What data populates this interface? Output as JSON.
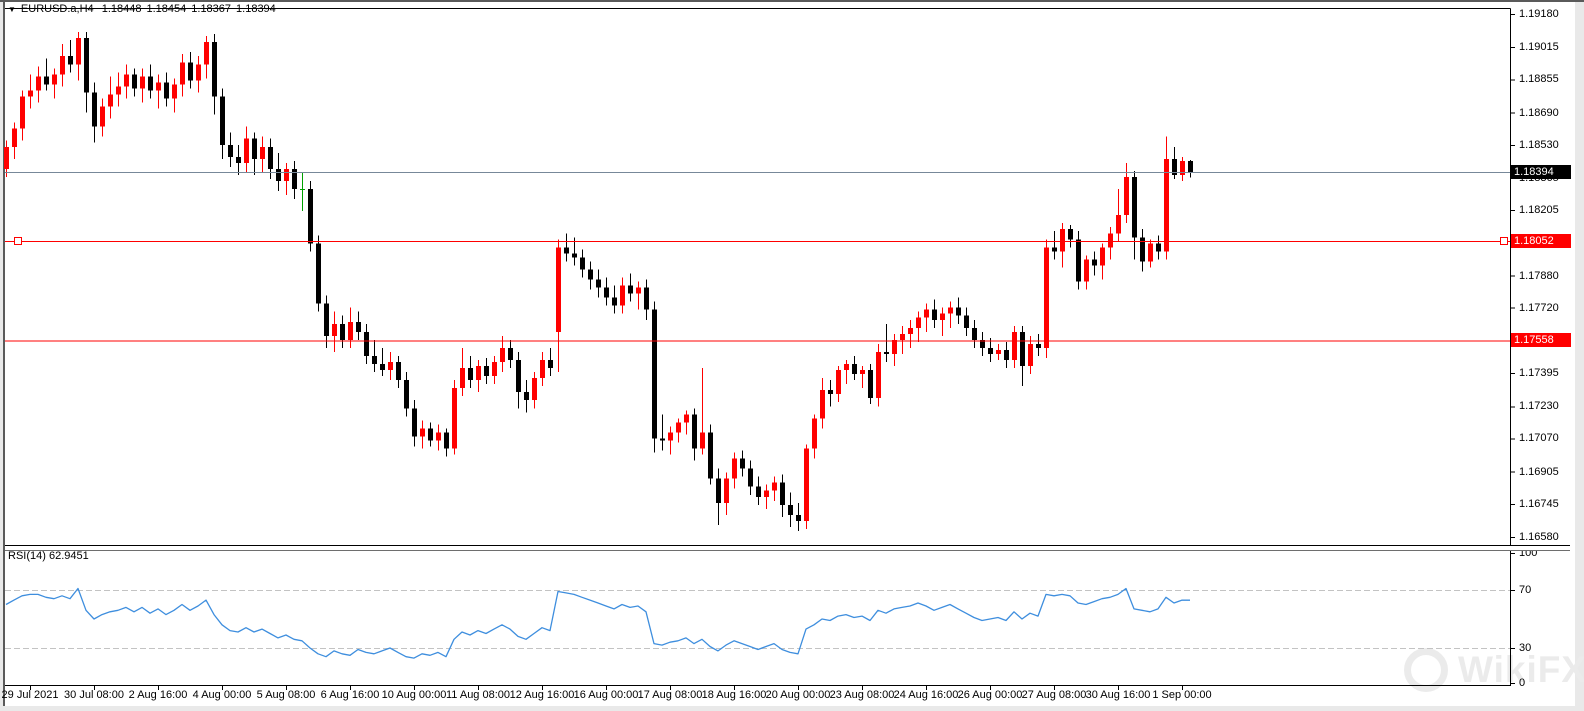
{
  "header": {
    "dropdown_icon": "▼",
    "symbol": "EURUSD.a,H4",
    "open": "1.18448",
    "high": "1.18454",
    "low": "1.18367",
    "close": "1.18394"
  },
  "colors": {
    "bull": "#ff0000",
    "bear": "#000000",
    "doji": "#00a000",
    "rsi_line": "#3e8ede",
    "rsi_level_dash": "#c3c3c3",
    "level_line": "#ff0000",
    "price_line": "#778899",
    "price_badge_bg": "#000000",
    "level_badge_bg": "#ff0000",
    "badge_text": "#ffffff",
    "axis_text": "#000000",
    "watermark": "#ebebeb"
  },
  "watermark": {
    "text": "WikiFX"
  },
  "chart_data": {
    "type": "candlestick",
    "title": "EURUSD.a H4 candlestick chart with RSI(14)",
    "symbol": "EURUSD.a",
    "timeframe": "H4",
    "grid": false,
    "y_axis_ticks": [
      "1.19180",
      "1.19015",
      "1.18855",
      "1.18690",
      "1.18530",
      "1.18365",
      "1.18205",
      "1.18040",
      "1.17880",
      "1.17720",
      "1.17560",
      "1.17395",
      "1.17230",
      "1.17070",
      "1.16905",
      "1.16745",
      "1.16580"
    ],
    "x_axis_labels": [
      "29 Jul 2021",
      "30 Jul 08:00",
      "2 Aug 16:00",
      "4 Aug 00:00",
      "5 Aug 08:00",
      "6 Aug 16:00",
      "10 Aug 00:00",
      "11 Aug 08:00",
      "12 Aug 16:00",
      "16 Aug 00:00",
      "17 Aug 08:00",
      "18 Aug 16:00",
      "20 Aug 00:00",
      "23 Aug 08:00",
      "24 Aug 16:00",
      "26 Aug 00:00",
      "27 Aug 08:00",
      "30 Aug 16:00",
      "1 Sep 00:00"
    ],
    "x_label_first_bar": 3,
    "x_label_bar_step": 8,
    "current_price": {
      "value": 1.18394,
      "label": "1.18394"
    },
    "levels": [
      {
        "value": 1.18052,
        "label": "1.18052",
        "selected": true
      },
      {
        "value": 1.17558,
        "label": "1.17558",
        "selected": false
      }
    ],
    "candles": [
      [
        1.1841,
        1.1855,
        1.1837,
        1.1852
      ],
      [
        1.1852,
        1.1864,
        1.1846,
        1.1861
      ],
      [
        1.1861,
        1.188,
        1.1855,
        1.1877
      ],
      [
        1.1877,
        1.1888,
        1.1871,
        1.188
      ],
      [
        1.188,
        1.1892,
        1.1874,
        1.1887
      ],
      [
        1.1887,
        1.1896,
        1.188,
        1.1883
      ],
      [
        1.1883,
        1.1891,
        1.1876,
        1.1888
      ],
      [
        1.1888,
        1.1903,
        1.1882,
        1.1897
      ],
      [
        1.1897,
        1.1905,
        1.1889,
        1.1893
      ],
      [
        1.1893,
        1.1909,
        1.1885,
        1.1906
      ],
      [
        1.1906,
        1.1909,
        1.1869,
        1.1879
      ],
      [
        1.1879,
        1.1884,
        1.1854,
        1.1862
      ],
      [
        1.1862,
        1.1876,
        1.1857,
        1.1872
      ],
      [
        1.1872,
        1.1887,
        1.1866,
        1.1878
      ],
      [
        1.1878,
        1.1889,
        1.1872,
        1.1882
      ],
      [
        1.1882,
        1.1893,
        1.1876,
        1.1888
      ],
      [
        1.1888,
        1.1891,
        1.1877,
        1.1881
      ],
      [
        1.1881,
        1.1891,
        1.1874,
        1.1887
      ],
      [
        1.1887,
        1.1893,
        1.1876,
        1.188
      ],
      [
        1.188,
        1.1888,
        1.1871,
        1.1884
      ],
      [
        1.1884,
        1.1889,
        1.1872,
        1.1876
      ],
      [
        1.1876,
        1.1886,
        1.1869,
        1.1883
      ],
      [
        1.1883,
        1.1898,
        1.1877,
        1.1894
      ],
      [
        1.1894,
        1.1899,
        1.1881,
        1.1885
      ],
      [
        1.1885,
        1.1897,
        1.1879,
        1.1893
      ],
      [
        1.1893,
        1.1907,
        1.1886,
        1.1904
      ],
      [
        1.1904,
        1.1908,
        1.1868,
        1.1877
      ],
      [
        1.1877,
        1.1881,
        1.1846,
        1.1853
      ],
      [
        1.1853,
        1.1859,
        1.1842,
        1.1847
      ],
      [
        1.1847,
        1.1853,
        1.1838,
        1.1844
      ],
      [
        1.1844,
        1.1862,
        1.1839,
        1.1856
      ],
      [
        1.1856,
        1.1859,
        1.1838,
        1.1846
      ],
      [
        1.1846,
        1.1857,
        1.1839,
        1.1852
      ],
      [
        1.1852,
        1.1856,
        1.1836,
        1.1841
      ],
      [
        1.1841,
        1.1849,
        1.183,
        1.1835
      ],
      [
        1.1835,
        1.1844,
        1.1828,
        1.1841
      ],
      [
        1.1841,
        1.1845,
        1.1826,
        1.1831
      ],
      [
        1.1831,
        1.1839,
        1.182,
        1.1831
      ],
      [
        1.1831,
        1.1835,
        1.18,
        1.1804
      ],
      [
        1.1804,
        1.1808,
        1.177,
        1.1774
      ],
      [
        1.1774,
        1.1778,
        1.1752,
        1.1758
      ],
      [
        1.1758,
        1.177,
        1.175,
        1.1764
      ],
      [
        1.1764,
        1.1768,
        1.1752,
        1.1756
      ],
      [
        1.1756,
        1.1772,
        1.1752,
        1.1765
      ],
      [
        1.1765,
        1.177,
        1.1756,
        1.176
      ],
      [
        1.176,
        1.1764,
        1.1744,
        1.1748
      ],
      [
        1.1748,
        1.1756,
        1.174,
        1.1744
      ],
      [
        1.1744,
        1.1752,
        1.1738,
        1.1741
      ],
      [
        1.1741,
        1.175,
        1.1736,
        1.1745
      ],
      [
        1.1745,
        1.1748,
        1.1732,
        1.1736
      ],
      [
        1.1736,
        1.174,
        1.1718,
        1.1722
      ],
      [
        1.1722,
        1.1726,
        1.1703,
        1.1708
      ],
      [
        1.1708,
        1.1716,
        1.1702,
        1.1712
      ],
      [
        1.1712,
        1.1715,
        1.1703,
        1.1706
      ],
      [
        1.1706,
        1.1714,
        1.1701,
        1.171
      ],
      [
        1.171,
        1.1712,
        1.1698,
        1.1702
      ],
      [
        1.1702,
        1.1736,
        1.1699,
        1.1732
      ],
      [
        1.1732,
        1.1752,
        1.1728,
        1.1742
      ],
      [
        1.1742,
        1.1748,
        1.1732,
        1.1736
      ],
      [
        1.1736,
        1.1746,
        1.173,
        1.1743
      ],
      [
        1.1743,
        1.1747,
        1.1734,
        1.1738
      ],
      [
        1.1738,
        1.1748,
        1.1734,
        1.1745
      ],
      [
        1.1745,
        1.1758,
        1.174,
        1.1752
      ],
      [
        1.1752,
        1.1756,
        1.1742,
        1.1746
      ],
      [
        1.1746,
        1.175,
        1.1722,
        1.173
      ],
      [
        1.173,
        1.1736,
        1.172,
        1.1726
      ],
      [
        1.1726,
        1.174,
        1.1722,
        1.1737
      ],
      [
        1.1737,
        1.175,
        1.1733,
        1.1746
      ],
      [
        1.1746,
        1.1752,
        1.1738,
        1.1742
      ],
      [
        1.176,
        1.1806,
        1.174,
        1.1802
      ],
      [
        1.1802,
        1.1809,
        1.1795,
        1.1799
      ],
      [
        1.1799,
        1.1807,
        1.1793,
        1.1797
      ],
      [
        1.1797,
        1.1801,
        1.1787,
        1.1791
      ],
      [
        1.1791,
        1.1795,
        1.1781,
        1.1786
      ],
      [
        1.1786,
        1.1791,
        1.1777,
        1.1782
      ],
      [
        1.1782,
        1.1787,
        1.1773,
        1.1777
      ],
      [
        1.1777,
        1.1783,
        1.1769,
        1.1773
      ],
      [
        1.1773,
        1.1787,
        1.1769,
        1.1783
      ],
      [
        1.1783,
        1.1789,
        1.1775,
        1.1779
      ],
      [
        1.1779,
        1.1785,
        1.1771,
        1.1782
      ],
      [
        1.1782,
        1.1786,
        1.1766,
        1.1771
      ],
      [
        1.1771,
        1.1775,
        1.17,
        1.1707
      ],
      [
        1.1707,
        1.1719,
        1.1701,
        1.1706
      ],
      [
        1.1706,
        1.1713,
        1.1699,
        1.171
      ],
      [
        1.171,
        1.1717,
        1.1705,
        1.1715
      ],
      [
        1.1715,
        1.1721,
        1.1709,
        1.1719
      ],
      [
        1.1719,
        1.1722,
        1.1696,
        1.1702
      ],
      [
        1.1702,
        1.1742,
        1.1699,
        1.171
      ],
      [
        1.171,
        1.1714,
        1.1684,
        1.1687
      ],
      [
        1.1687,
        1.1692,
        1.1664,
        1.1675
      ],
      [
        1.1675,
        1.169,
        1.1669,
        1.1687
      ],
      [
        1.1687,
        1.17,
        1.1682,
        1.1697
      ],
      [
        1.1697,
        1.1701,
        1.1688,
        1.1692
      ],
      [
        1.1692,
        1.1696,
        1.1679,
        1.1683
      ],
      [
        1.1683,
        1.1688,
        1.1674,
        1.1678
      ],
      [
        1.1678,
        1.1684,
        1.1672,
        1.1681
      ],
      [
        1.1681,
        1.1688,
        1.1676,
        1.1685
      ],
      [
        1.1685,
        1.1689,
        1.1668,
        1.1674
      ],
      [
        1.1674,
        1.168,
        1.1663,
        1.1669
      ],
      [
        1.1669,
        1.1675,
        1.1661,
        1.1666
      ],
      [
        1.1666,
        1.1704,
        1.1662,
        1.1702
      ],
      [
        1.1702,
        1.1719,
        1.1697,
        1.1717
      ],
      [
        1.1717,
        1.1737,
        1.1712,
        1.1731
      ],
      [
        1.1731,
        1.1736,
        1.1723,
        1.1729
      ],
      [
        1.1729,
        1.1743,
        1.1725,
        1.1741
      ],
      [
        1.1741,
        1.1746,
        1.1734,
        1.1744
      ],
      [
        1.1744,
        1.1748,
        1.1736,
        1.1739
      ],
      [
        1.1739,
        1.1743,
        1.1732,
        1.1741
      ],
      [
        1.1741,
        1.1744,
        1.1724,
        1.1727
      ],
      [
        1.1727,
        1.1754,
        1.1723,
        1.175
      ],
      [
        1.175,
        1.1764,
        1.1745,
        1.1749
      ],
      [
        1.1749,
        1.1759,
        1.1743,
        1.1756
      ],
      [
        1.1756,
        1.1763,
        1.1749,
        1.1759
      ],
      [
        1.1759,
        1.1766,
        1.1752,
        1.1762
      ],
      [
        1.1762,
        1.177,
        1.1755,
        1.1767
      ],
      [
        1.1767,
        1.1774,
        1.176,
        1.1771
      ],
      [
        1.1771,
        1.1776,
        1.1762,
        1.1766
      ],
      [
        1.1766,
        1.1772,
        1.1758,
        1.1769
      ],
      [
        1.1769,
        1.1775,
        1.1762,
        1.1772
      ],
      [
        1.1772,
        1.1777,
        1.1764,
        1.1768
      ],
      [
        1.1768,
        1.1772,
        1.1758,
        1.1762
      ],
      [
        1.1762,
        1.1766,
        1.1752,
        1.1756
      ],
      [
        1.1756,
        1.176,
        1.1748,
        1.1752
      ],
      [
        1.1752,
        1.1757,
        1.1745,
        1.1749
      ],
      [
        1.1749,
        1.1754,
        1.1746,
        1.1751
      ],
      [
        1.1751,
        1.1755,
        1.1742,
        1.1746
      ],
      [
        1.1746,
        1.1763,
        1.1742,
        1.176
      ],
      [
        1.176,
        1.1763,
        1.1733,
        1.1743
      ],
      [
        1.1743,
        1.1758,
        1.1739,
        1.1754
      ],
      [
        1.1754,
        1.1759,
        1.1748,
        1.1752
      ],
      [
        1.1752,
        1.1806,
        1.1747,
        1.1802
      ],
      [
        1.1802,
        1.181,
        1.1796,
        1.18
      ],
      [
        1.18,
        1.1814,
        1.1792,
        1.1811
      ],
      [
        1.1811,
        1.1813,
        1.1802,
        1.1806
      ],
      [
        1.1806,
        1.181,
        1.1781,
        1.1785
      ],
      [
        1.1785,
        1.1798,
        1.1781,
        1.1796
      ],
      [
        1.1796,
        1.18,
        1.1788,
        1.1793
      ],
      [
        1.1793,
        1.1804,
        1.1786,
        1.1802
      ],
      [
        1.1802,
        1.1812,
        1.1796,
        1.1809
      ],
      [
        1.1809,
        1.1831,
        1.1805,
        1.1818
      ],
      [
        1.1818,
        1.1844,
        1.1814,
        1.1837
      ],
      [
        1.1837,
        1.184,
        1.1796,
        1.1807
      ],
      [
        1.1807,
        1.1811,
        1.179,
        1.1795
      ],
      [
        1.1795,
        1.1806,
        1.1792,
        1.1804
      ],
      [
        1.1804,
        1.1808,
        1.1796,
        1.18
      ],
      [
        1.18,
        1.1857,
        1.1796,
        1.1846
      ],
      [
        1.1846,
        1.1852,
        1.1836,
        1.1838
      ],
      [
        1.1838,
        1.1847,
        1.1835,
        1.1845
      ],
      [
        1.18448,
        1.18454,
        1.18367,
        1.18394
      ]
    ],
    "rsi": {
      "label": "RSI(14) 62.9451",
      "period": 14,
      "value": 62.9451,
      "overbought": 70,
      "oversold": 30,
      "scale_values": [
        100,
        70,
        30,
        0
      ],
      "scale_labels": [
        "100",
        "70",
        "30",
        "0"
      ],
      "values": [
        60,
        63,
        66,
        67,
        67,
        65,
        64,
        66,
        64,
        71,
        56,
        50,
        53,
        55,
        56,
        58,
        55,
        58,
        54,
        57,
        53,
        56,
        60,
        56,
        59,
        63,
        53,
        46,
        42,
        41,
        44,
        41,
        43,
        40,
        37,
        39,
        36,
        35,
        30,
        26,
        24,
        28,
        26,
        25,
        29,
        27,
        26,
        28,
        30,
        27,
        24,
        23,
        26,
        25,
        27,
        24,
        36,
        41,
        39,
        42,
        40,
        43,
        46,
        43,
        38,
        36,
        40,
        44,
        42,
        69,
        68,
        67,
        65,
        63,
        61,
        59,
        57,
        60,
        58,
        59,
        55,
        33,
        32,
        34,
        35,
        37,
        33,
        36,
        31,
        28,
        32,
        35,
        33,
        31,
        29,
        31,
        33,
        29,
        27,
        26,
        43,
        46,
        50,
        49,
        52,
        53,
        51,
        52,
        49,
        56,
        54,
        57,
        58,
        59,
        61,
        59,
        56,
        58,
        60,
        57,
        54,
        51,
        49,
        50,
        51,
        49,
        55,
        50,
        54,
        52,
        67,
        66,
        67,
        66,
        61,
        60,
        62,
        64,
        65,
        67,
        71,
        57,
        56,
        55,
        57,
        65,
        61,
        63,
        62.9451
      ]
    }
  }
}
